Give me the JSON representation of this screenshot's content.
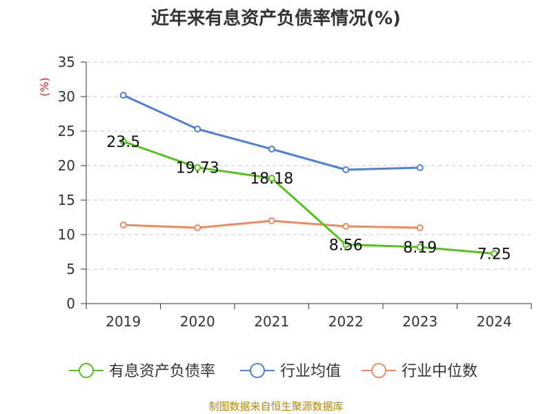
{
  "chart_data": {
    "type": "line",
    "title": "近年来有息资产负债率情况(%)",
    "ylabel": "(%)",
    "xlabel": "",
    "categories": [
      "2019",
      "2020",
      "2021",
      "2022",
      "2023",
      "2024"
    ],
    "ylim": [
      0,
      35
    ],
    "yticks": [
      0,
      5,
      10,
      15,
      20,
      25,
      30,
      35
    ],
    "grid": true,
    "legend_position": "bottom",
    "series": [
      {
        "name": "有息资产负债率",
        "color": "#52c41a",
        "values": [
          23.5,
          19.73,
          18.18,
          8.56,
          8.19,
          7.25
        ],
        "labels": [
          "23.5",
          "19.73",
          "18.18",
          "8.56",
          "8.19",
          "7.25"
        ]
      },
      {
        "name": "行业均值",
        "color": "#4e7fd9",
        "values": [
          30.2,
          25.3,
          22.4,
          19.4,
          19.7,
          null
        ]
      },
      {
        "name": "行业中位数",
        "color": "#f4875e",
        "values": [
          11.4,
          11.0,
          12.0,
          11.2,
          11.0,
          null
        ]
      }
    ]
  },
  "footer": {
    "source": "制图数据来自恒生聚源数据库"
  }
}
